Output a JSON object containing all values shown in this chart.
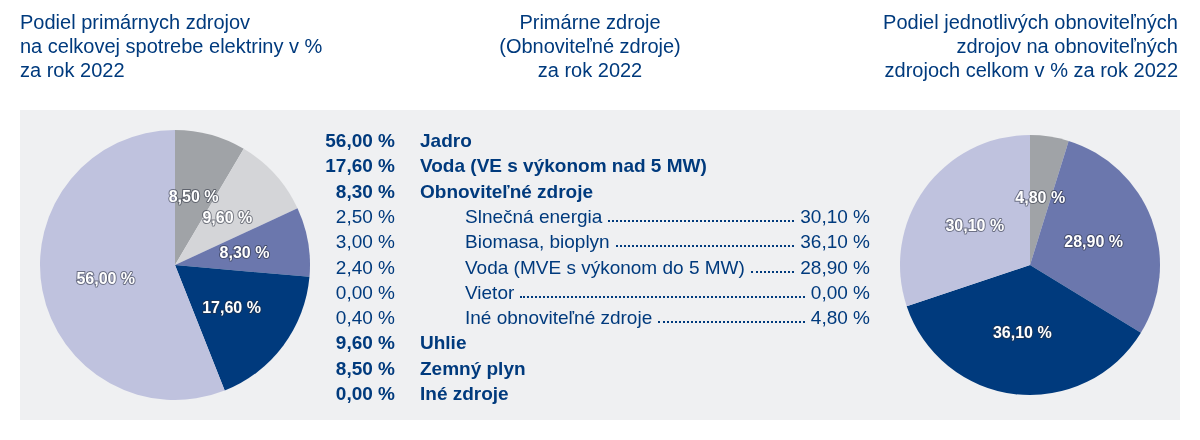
{
  "chart_data": [
    {
      "type": "pie",
      "title": "Podiel primárnych zdrojov\nna celkovej spotrebe elektriny v %\nza rok 2022",
      "categories": [
        null,
        null,
        null,
        null,
        null
      ],
      "values": [
        8.5,
        9.6,
        8.3,
        17.6,
        56.0
      ],
      "colors": [
        "#a0a3a7",
        "#d4d5d8",
        "#6b77ad",
        "#003a7d",
        "#bfc2de"
      ],
      "value_labels": [
        "8,50 %",
        "9,60 %",
        "8,30 %",
        "17,60 %",
        "56,00 %"
      ]
    },
    {
      "type": "other",
      "title": "Primárne zdroje\n(Obnoviteľné zdroje)\nza rok 2022",
      "categories": [
        "Jadro",
        "Voda (VE s výkonom nad 5 MW)",
        "Obnoviteľné zdroje",
        "Slnečná energia",
        "Biomasa, bioplyn",
        "Voda (MVE s výkonom do 5 MW)",
        "Vietor",
        "Iné obnoviteľné zdroje",
        "Uhlie",
        "Zemný plyn",
        "Iné zdroje"
      ],
      "series": [
        {
          "values": [
            56.0,
            17.6,
            8.3,
            2.5,
            3.0,
            2.4,
            0.0,
            0.4,
            9.6,
            8.5,
            0.0
          ],
          "value_labels": [
            "56,00 %",
            "17,60 %",
            "8,30 %",
            "2,50 %",
            "3,00 %",
            "2,40 %",
            "0,00 %",
            "0,40 %",
            "9,60 %",
            "8,50 %",
            "0,00 %"
          ]
        },
        {
          "values": [
            null,
            null,
            null,
            30.1,
            36.1,
            28.9,
            0.0,
            4.8,
            null,
            null,
            null
          ],
          "value_labels": [
            null,
            null,
            null,
            "30,10 %",
            "36,10 %",
            "28,90 %",
            "0,00 %",
            "4,80 %",
            null,
            null,
            null
          ]
        }
      ]
    },
    {
      "type": "pie",
      "title": "Podiel jednotlivých obnoviteľných\nzdrojov na obnoviteľných\nzdrojoch celkom v % za rok 2022",
      "categories": [
        null,
        null,
        null,
        null
      ],
      "values": [
        4.8,
        28.9,
        36.1,
        30.1
      ],
      "colors": [
        "#a0a3a7",
        "#6b77ad",
        "#003a7d",
        "#bfc2de"
      ],
      "value_labels": [
        "4,80 %",
        "28,90 %",
        "36,10 %",
        "30,10 %"
      ]
    }
  ]
}
